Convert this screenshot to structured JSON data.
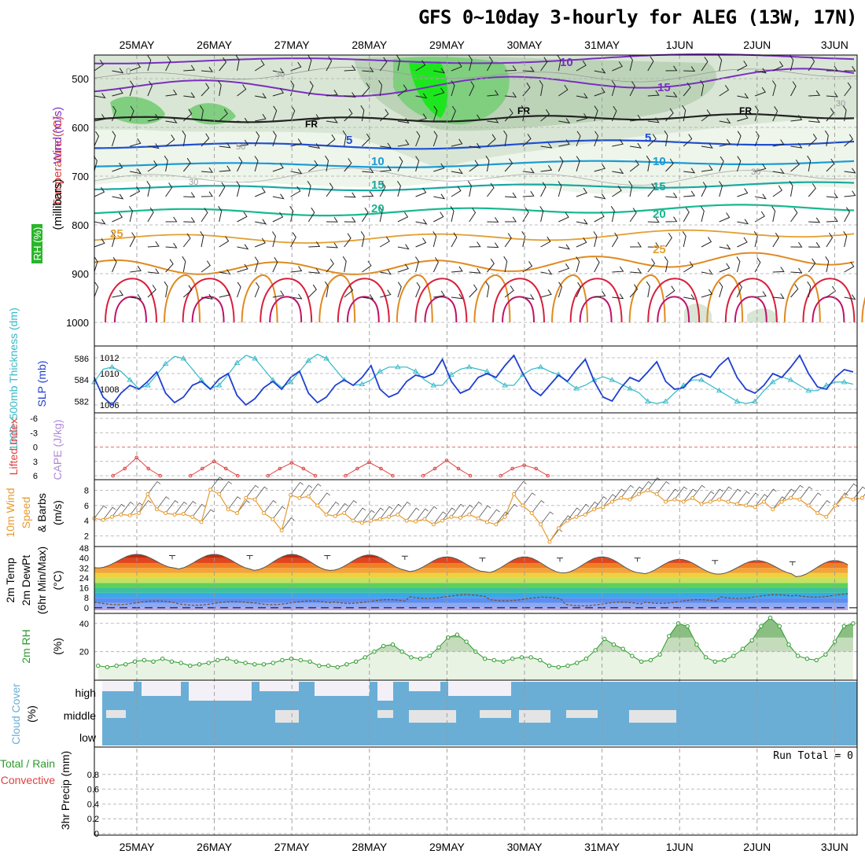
{
  "title": "GFS 0~10day 3-hourly for ALEG (13W, 17N)",
  "days": [
    "25MAY",
    "26MAY",
    "27MAY",
    "28MAY",
    "29MAY",
    "30MAY",
    "31MAY",
    "1JUN",
    "2JUN",
    "3JUN"
  ],
  "panels": {
    "upper": {
      "label_wind": "Wind (m/s)",
      "label_temp": "Temperature (°C)",
      "label_rh": "RH (%)",
      "label_unit": "(millibars)",
      "label_rh_unit": "(%)"
    },
    "slp": {
      "label_thick": "1000~500mb Thickness (dm)",
      "label_slp": "SLP (mb)"
    },
    "li": {
      "label_li": "Lifted Index",
      "label_cape": "CAPE (J/kg)"
    },
    "wind10": {
      "label_a": "10m Wind",
      "label_b": "Speed",
      "label_c": "& Barbs",
      "label_unit": "(m/s)"
    },
    "temp2m": {
      "label_a": "2m Temp",
      "label_b": "2m DewPt",
      "label_c": "(6hr Min/Max)",
      "label_unit": "(°C)"
    },
    "rh2m": {
      "label": "2m RH",
      "label_unit": "(%)"
    },
    "cloud": {
      "label": "Cloud Cover",
      "label_unit": "(%)",
      "levels": [
        "high",
        "middle",
        "low"
      ]
    },
    "precip": {
      "label_a": "Total / Rain",
      "label_b": "Convective",
      "label_c": "3hr Precip (mm)",
      "run_total": "Run Total = 0"
    }
  },
  "colors": {
    "slp": "#1f3fd0",
    "thickness": "#33b8c8",
    "li": "#e04040",
    "wind": "#e69a2e",
    "rh": "#2c9a2c",
    "cloud": "#6aaed6",
    "isotherm_warm": "#e08a20",
    "isotherm_hot": "#d8203a"
  },
  "chart_data": [
    {
      "type": "line",
      "name": "upper-air cross section",
      "y_pressure_ticks": [
        500,
        600,
        700,
        800,
        900,
        1000
      ],
      "isotherm_labels": [
        "5",
        "10",
        "15",
        "20",
        "25"
      ],
      "freezing_level_label": "FR",
      "wind_labels": [
        "10",
        "15"
      ],
      "rh_contour_labels": [
        "30",
        "50"
      ]
    },
    {
      "type": "line",
      "name": "sea level pressure and thickness",
      "slp_ticks": [
        "1006",
        "1008",
        "1010",
        "1012"
      ],
      "thickness_ticks": [
        "582",
        "584",
        "586"
      ],
      "slp_ylim": [
        1005.5,
        1013
      ],
      "slp": [
        1009.5,
        1007.0,
        1006.0,
        1007.5,
        1008.5,
        1008.0,
        1009.0,
        1010.2,
        1007.5,
        1006.3,
        1007.0,
        1008.5,
        1009.0,
        1008.0,
        1009.3,
        1010.0,
        1007.2,
        1006.0,
        1006.8,
        1008.2,
        1009.0,
        1008.0,
        1009.5,
        1010.3,
        1007.5,
        1006.3,
        1007.0,
        1008.5,
        1009.2,
        1008.5,
        1009.5,
        1011.0,
        1008.0,
        1007.0,
        1007.5,
        1009.0,
        1009.8,
        1009.5,
        1010.0,
        1011.8,
        1009.0,
        1007.5,
        1008.0,
        1009.5,
        1010.0,
        1009.5,
        1011.0,
        1012.3,
        1010.0,
        1008.0,
        1007.2,
        1008.5,
        1009.8,
        1009.0,
        1010.5,
        1011.8,
        1009.0,
        1007.0,
        1006.5,
        1008.2,
        1009.5,
        1009.0,
        1010.2,
        1011.5,
        1009.0,
        1008.0,
        1008.2,
        1009.5,
        1010.0,
        1009.5,
        1011.0,
        1012.0,
        1009.5,
        1008.0,
        1007.5,
        1008.5,
        1010.0,
        1009.5,
        1010.8,
        1012.3,
        1010.0,
        1008.3,
        1008.0,
        1009.5,
        1010.5,
        1010.2
      ],
      "thickness_ylim": [
        581.3,
        586.8
      ],
      "thickness": [
        583.8,
        585.0,
        585.2,
        584.8,
        584.0,
        583.2,
        583.5,
        584.5,
        585.5,
        586.2,
        586.0,
        585.0,
        584.0,
        583.2,
        583.5,
        584.5,
        585.6,
        586.3,
        586.0,
        585.0,
        584.0,
        583.3,
        583.8,
        584.8,
        585.8,
        586.4,
        586.0,
        585.0,
        584.0,
        583.5,
        583.6,
        584.0,
        584.8,
        585.2,
        585.2,
        585.2,
        584.8,
        584.0,
        583.5,
        583.5,
        584.5,
        585.0,
        585.2,
        585.0,
        584.8,
        584.0,
        583.5,
        583.5,
        584.5,
        585.0,
        585.2,
        584.8,
        584.5,
        583.8,
        583.2,
        583.5,
        584.0,
        584.3,
        584.0,
        583.6,
        583.2,
        582.8,
        582.0,
        581.8,
        582.0,
        582.8,
        583.5,
        584.0,
        584.0,
        583.5,
        583.0,
        582.5,
        582.0,
        581.8,
        582.0,
        583.0,
        583.8,
        584.3,
        584.0,
        583.5,
        583.0,
        583.0,
        583.5,
        583.8,
        583.8,
        583.6
      ]
    },
    {
      "type": "line",
      "name": "lifted index",
      "ticks": [
        "-6",
        "-3",
        "0",
        "3",
        "6"
      ],
      "ylim": [
        -6,
        6
      ],
      "dip_locations_day_fraction": [
        0.25,
        1.25,
        2.25,
        3.25,
        4.25,
        5.25
      ],
      "dip_values": [
        2.2,
        3.0,
        3.3,
        3.2,
        2.8,
        3.8
      ]
    },
    {
      "type": "line",
      "name": "10m wind speed",
      "ticks": [
        "2",
        "4",
        "6",
        "8"
      ],
      "ylim": [
        1,
        9
      ],
      "values": [
        4.3,
        4.1,
        4.5,
        4.8,
        4.7,
        5.0,
        7.5,
        5.5,
        5.0,
        4.8,
        4.9,
        4.5,
        3.8,
        8.1,
        7.5,
        5.5,
        5.0,
        7.0,
        6.8,
        5.0,
        4.2,
        2.7,
        7.4,
        7.0,
        7.2,
        6.0,
        4.8,
        4.6,
        5.0,
        4.0,
        3.7,
        4.0,
        4.2,
        4.5,
        4.8,
        4.0,
        3.9,
        4.2,
        3.5,
        4.0,
        4.5,
        4.4,
        4.8,
        4.3,
        3.8,
        3.5,
        4.5,
        7.5,
        6.0,
        5.0,
        3.5,
        1.2,
        3.0,
        4.0,
        4.5,
        4.8,
        5.5,
        5.8,
        6.5,
        7.0,
        6.8,
        7.5,
        8.0,
        7.5,
        6.5,
        6.8,
        6.5,
        7.0,
        6.2,
        6.5,
        6.8,
        6.5,
        6.2,
        6.0,
        5.8,
        6.5,
        5.5,
        6.5,
        7.0,
        6.8,
        6.0,
        5.0,
        4.5,
        6.0,
        7.2,
        6.8,
        7.0
      ]
    },
    {
      "type": "area",
      "name": "2m temperature and dewpoint",
      "ticks": [
        "0",
        "8",
        "16",
        "24",
        "32",
        "40",
        "48"
      ],
      "ylim": [
        -2,
        48
      ],
      "temp_max": [
        43,
        43,
        43,
        42.5,
        41,
        41,
        41,
        39,
        38,
        38
      ],
      "temp_min": [
        32,
        31,
        30,
        30,
        29,
        28,
        28,
        27,
        27,
        25
      ],
      "dewpoint_approx": [
        4,
        3.5,
        4,
        5,
        9,
        7,
        3,
        5,
        9,
        10
      ]
    },
    {
      "type": "area",
      "name": "2m relative humidity",
      "ticks": [
        "20",
        "40"
      ],
      "ylim": [
        2,
        46
      ],
      "values": [
        10,
        9,
        10,
        11,
        13,
        14,
        13,
        15,
        13,
        12,
        10,
        11,
        12,
        14,
        15,
        13,
        12,
        11,
        11,
        12,
        14,
        15,
        14,
        13,
        10,
        10,
        9,
        11,
        13,
        16,
        20,
        24,
        25,
        20,
        16,
        15,
        17,
        23,
        30,
        32,
        27,
        20,
        15,
        14,
        13,
        15,
        16,
        16,
        14,
        10,
        9,
        10,
        12,
        15,
        21,
        29,
        25,
        22,
        17,
        13,
        14,
        18,
        31,
        40,
        38,
        25,
        16,
        13,
        14,
        17,
        22,
        28,
        38,
        44,
        38,
        25,
        17,
        15,
        14,
        18,
        27,
        38,
        40
      ]
    },
    {
      "type": "area",
      "name": "cloud cover",
      "levels": [
        "high",
        "middle",
        "low"
      ]
    },
    {
      "type": "bar",
      "name": "3hr precipitation",
      "ticks": [
        "0",
        "0.2",
        "0.4",
        "0.6",
        "0.8"
      ],
      "ylim": [
        0,
        1
      ],
      "values": []
    }
  ]
}
